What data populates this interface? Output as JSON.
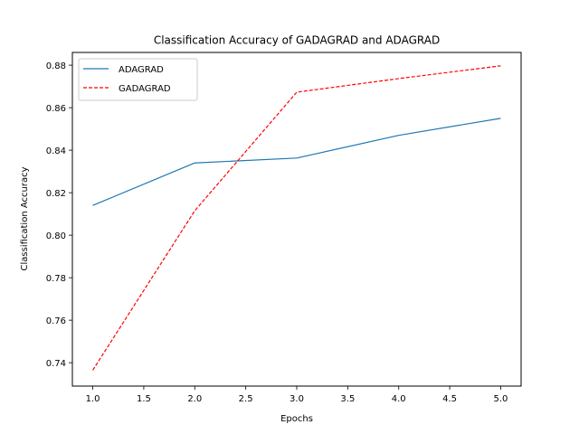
{
  "chart_data": {
    "type": "line",
    "title": "Classification Accuracy of GADAGRAD and ADAGRAD",
    "xlabel": "Epochs",
    "ylabel": "Classification Accuracy",
    "x": [
      1.0,
      2.0,
      3.0,
      4.0,
      5.0
    ],
    "xlim": [
      0.8,
      5.2
    ],
    "ylim": [
      0.729,
      0.886
    ],
    "xticks": [
      "1.0",
      "1.5",
      "2.0",
      "2.5",
      "3.0",
      "3.5",
      "4.0",
      "4.5",
      "5.0"
    ],
    "yticks": [
      "0.74",
      "0.76",
      "0.78",
      "0.80",
      "0.82",
      "0.84",
      "0.86",
      "0.88"
    ],
    "grid": false,
    "legend_position": "upper-left",
    "series": [
      {
        "name": "ADAGRAD",
        "values": [
          0.814,
          0.834,
          0.8363,
          0.847,
          0.855
        ],
        "color": "#1f77b4",
        "style": "solid"
      },
      {
        "name": "GADAGRAD",
        "values": [
          0.7365,
          0.8115,
          0.8673,
          0.8737,
          0.8797
        ],
        "color": "#ff0000",
        "style": "dashed"
      }
    ]
  }
}
